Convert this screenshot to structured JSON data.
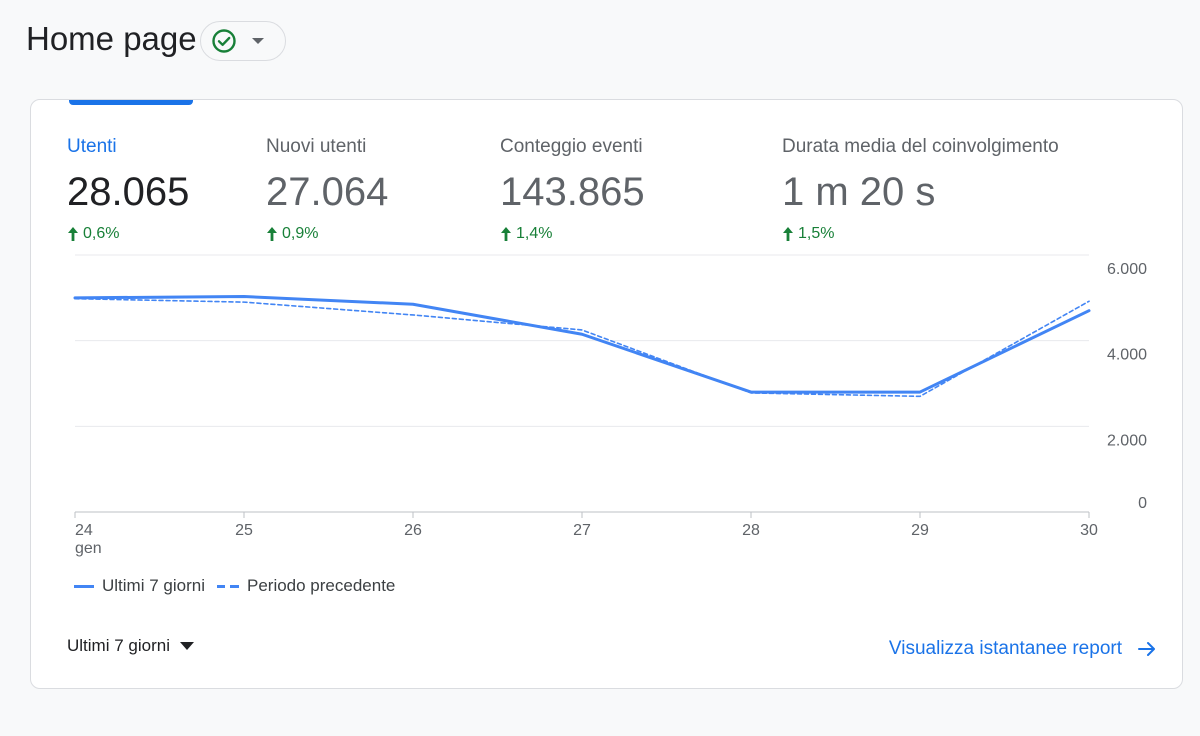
{
  "header": {
    "title": "Home page",
    "status_icon": "check-circle-icon",
    "dropdown_icon": "caret-down-icon"
  },
  "metrics": [
    {
      "label": "Utenti",
      "value": "28.065",
      "change": "0,6%",
      "active": true
    },
    {
      "label": "Nuovi utenti",
      "value": "27.064",
      "change": "0,9%",
      "active": false
    },
    {
      "label": "Conteggio eventi",
      "value": "143.865",
      "change": "1,4%",
      "active": false
    },
    {
      "label": "Durata media del coinvolgimento",
      "value": "1 m 20 s",
      "change": "1,5%",
      "active": false
    }
  ],
  "chart_data": {
    "type": "line",
    "x": [
      "24",
      "25",
      "26",
      "27",
      "28",
      "29",
      "30"
    ],
    "x_sublabel_first": "gen",
    "series": [
      {
        "name": "Ultimi 7 giorni",
        "style": "solid",
        "values": [
          5000,
          5030,
          4850,
          4150,
          2800,
          2800,
          4700
        ]
      },
      {
        "name": "Periodo precedente",
        "style": "dashed",
        "values": [
          4980,
          4900,
          4600,
          4250,
          2780,
          2700,
          4920
        ]
      }
    ],
    "y_ticks": [
      "6.000",
      "4.000",
      "2.000",
      "0"
    ],
    "y_tick_values": [
      6000,
      4000,
      2000,
      0
    ],
    "ylim": [
      0,
      6000
    ],
    "y_axis_side": "right",
    "grid": true,
    "legend_position": "bottom-left",
    "color": "#4285f4"
  },
  "footer": {
    "range_label": "Ultimi 7 giorni",
    "report_link": "Visualizza istantanee report"
  },
  "colors": {
    "accent": "#1a73e8",
    "positive": "#188038",
    "line": "#4285f4"
  }
}
